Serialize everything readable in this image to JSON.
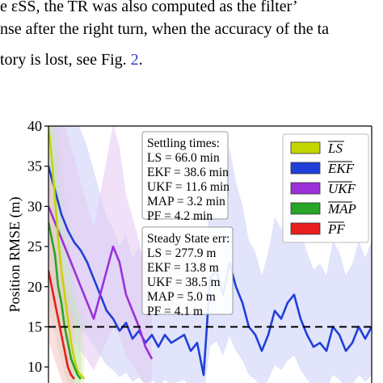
{
  "paragraph": {
    "line1": "e εSS, the TR was also computed as the filter’",
    "line2": "nse after the right turn, when the accuracy of the ta",
    "line3_pre": "tory is lost, see Fig. ",
    "line3_ref": "2",
    "line3_post": "."
  },
  "chart_data": {
    "type": "line",
    "ylabel": "Position RMSE (m)",
    "ylim": [
      8,
      40
    ],
    "yticks": [
      10,
      15,
      20,
      25,
      30,
      35,
      40
    ],
    "xlim": [
      0,
      100
    ],
    "threshold": 15,
    "legend": {
      "placement": "top-right",
      "entries": [
        "LS",
        "EKF",
        "UKF",
        "MAP",
        "PF"
      ]
    },
    "annotations": {
      "settling": {
        "title": "Settling times:",
        "lines": [
          "LS = 66.0 min",
          "EKF = 38.6 min",
          "UKF = 11.6 min",
          "MAP = 3.2 min",
          "PF = 4.2 min"
        ]
      },
      "steady": {
        "title": "Steady State err:",
        "lines": [
          "LS = 277.9 m",
          "EKF = 13.8 m",
          "UKF = 38.5 m",
          "MAP = 5.0 m",
          "PF = 4.1 m"
        ]
      }
    },
    "series": [
      {
        "name": "LS",
        "color": "#c3d600",
        "x": [
          0,
          1,
          2,
          3,
          4,
          5,
          6,
          7,
          8,
          9,
          10,
          11
        ],
        "y": [
          40,
          36,
          31,
          26,
          22,
          19,
          16,
          13,
          11,
          9.5,
          9,
          8.5
        ]
      },
      {
        "name": "EKF",
        "color": "#1f3fd8",
        "x": [
          0,
          2,
          4,
          6,
          8,
          10,
          12,
          14,
          16,
          18,
          20,
          22,
          24,
          26,
          28,
          30,
          32,
          34,
          36,
          38,
          40,
          42,
          44,
          46,
          48,
          50,
          52,
          54,
          56,
          58,
          60,
          62,
          64,
          66,
          68,
          70,
          72,
          74,
          76,
          78,
          80,
          82,
          84,
          86,
          88,
          90,
          92,
          94,
          96,
          98,
          100
        ],
        "y": [
          35,
          32,
          29,
          27,
          25.5,
          24.5,
          23,
          21,
          19,
          17,
          16,
          14.5,
          15.5,
          13.5,
          14.5,
          13,
          14,
          12.5,
          14,
          13,
          13.5,
          14,
          12,
          13,
          9,
          21,
          22,
          19,
          23,
          20,
          18,
          15,
          14,
          12,
          14,
          17,
          16,
          18,
          19,
          16,
          14,
          12.5,
          13,
          12,
          15,
          14,
          12,
          13,
          15,
          13.5,
          15
        ]
      },
      {
        "name": "UKF",
        "color": "#9b30d9",
        "x": [
          0,
          2,
          4,
          6,
          8,
          10,
          12,
          14,
          16,
          18,
          20,
          22,
          24,
          26,
          28,
          30,
          32
        ],
        "y": [
          30,
          28,
          26,
          24,
          22,
          20,
          18,
          16,
          19,
          22,
          25,
          23,
          19,
          17,
          15,
          12.5,
          11
        ]
      },
      {
        "name": "MAP",
        "color": "#26a526",
        "x": [
          0,
          1,
          2,
          3,
          4,
          5,
          6,
          7,
          8,
          9,
          10
        ],
        "y": [
          28,
          26,
          24,
          20,
          18,
          15,
          13,
          11,
          10,
          9,
          8.5
        ]
      },
      {
        "name": "PF",
        "color": "#e81d1d",
        "x": [
          0,
          1,
          2,
          3,
          4,
          5,
          6,
          7,
          8
        ],
        "y": [
          22,
          20,
          18,
          16,
          14,
          12,
          10,
          9,
          8.5
        ]
      }
    ]
  }
}
